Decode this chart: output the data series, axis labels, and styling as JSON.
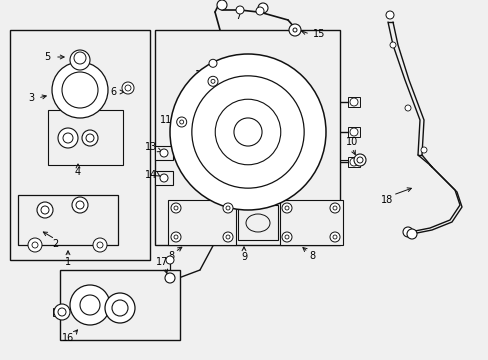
{
  "bg_color": "#f0f0f0",
  "line_color": "#111111",
  "label_color": "#000000",
  "label_fs": 7.0,
  "lw": 0.9
}
